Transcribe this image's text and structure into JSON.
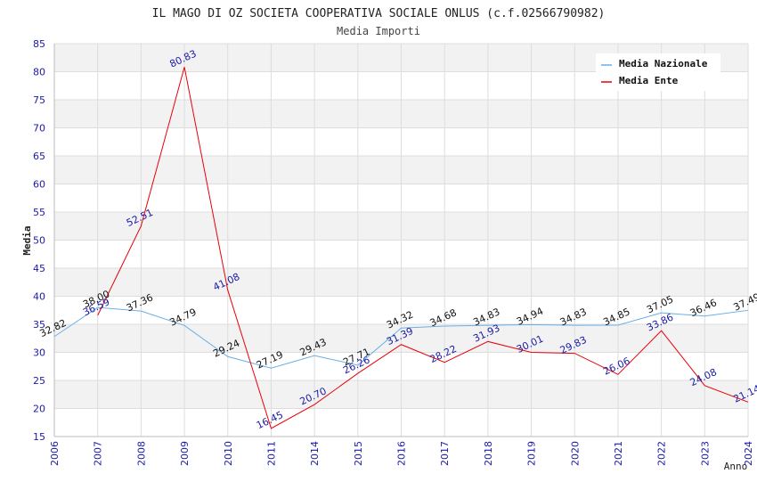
{
  "chart_data": {
    "type": "line",
    "title": "IL MAGO DI OZ SOCIETA COOPERATIVA SOCIALE ONLUS (c.f.02566790982)",
    "subtitle": "Media Importi",
    "xlabel": "Anno",
    "ylabel": "Media",
    "ylim": [
      15,
      85
    ],
    "yticks": [
      15,
      20,
      25,
      30,
      35,
      40,
      45,
      50,
      55,
      60,
      65,
      70,
      75,
      80,
      85
    ],
    "categories": [
      "2006",
      "2007",
      "2008",
      "2009",
      "2010",
      "2011",
      "2014",
      "2015",
      "2016",
      "2017",
      "2018",
      "2019",
      "2020",
      "2021",
      "2022",
      "2023",
      "2024"
    ],
    "legend_position": "top-right",
    "series": [
      {
        "name": "Media Nazionale",
        "color": "#6aaee6",
        "values": [
          32.82,
          38.0,
          37.36,
          34.79,
          29.24,
          27.19,
          29.43,
          27.71,
          34.32,
          34.68,
          34.83,
          34.94,
          34.83,
          34.85,
          37.05,
          36.46,
          37.49
        ],
        "labels": [
          "32.82",
          "38.00",
          "37.36",
          "34.79",
          "29.24",
          "27.19",
          "29.43",
          "27.71",
          "34.32",
          "34.68",
          "34.83",
          "34.94",
          "34.83",
          "34.85",
          "37.05",
          "36.46",
          "37.49"
        ]
      },
      {
        "name": "Media Ente",
        "color": "#e8000b",
        "values": [
          null,
          36.59,
          52.51,
          80.83,
          41.08,
          16.45,
          20.7,
          26.26,
          31.39,
          28.22,
          31.93,
          30.01,
          29.83,
          26.06,
          33.86,
          24.08,
          21.14
        ],
        "labels": [
          null,
          "36.59",
          "52.51",
          "80.83",
          "41.08",
          "16.45",
          "20.70",
          "26.26",
          "31.39",
          "28.22",
          "31.93",
          "30.01",
          "29.83",
          "26.06",
          "33.86",
          "24.08",
          "21.14"
        ]
      }
    ]
  }
}
